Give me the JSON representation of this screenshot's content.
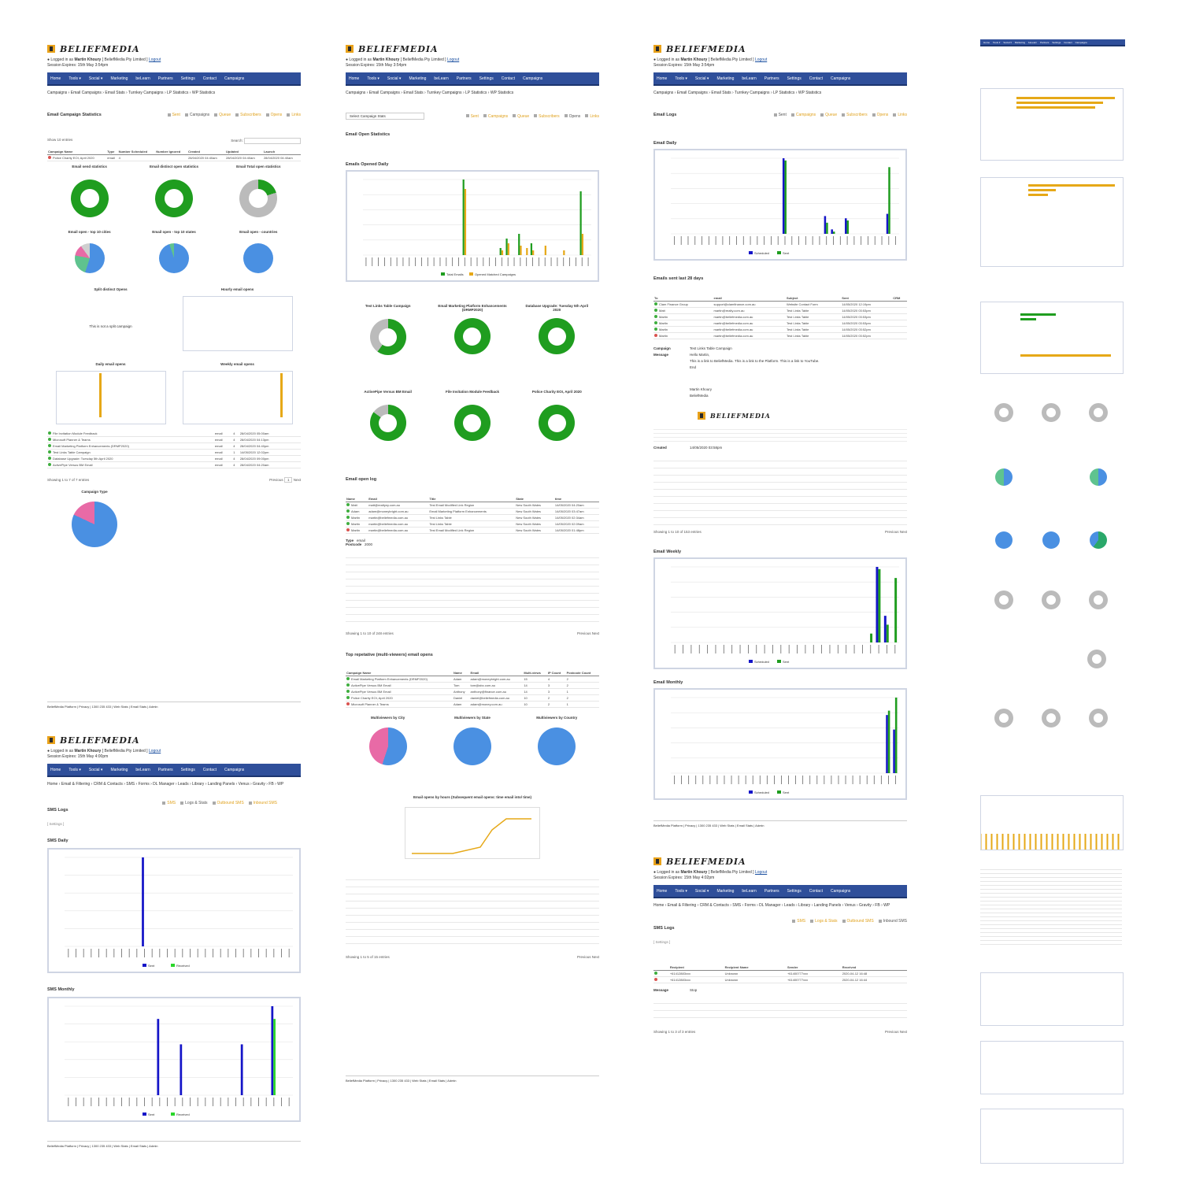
{
  "brand": {
    "logo_text": "BELIEFMEDIA"
  },
  "login": {
    "prefix": "Logged in as",
    "user": "Martin Khoury",
    "org": "[ BeliefMedia Pty Limited ]",
    "logout": "Logout",
    "session_a": "Session Expires: 15th May 3:54pm",
    "session_b": "Session Expires: 15th May 4:00pm",
    "session_c": "Session Expires: 15th May 4:02pm"
  },
  "nav": {
    "items": [
      "Home",
      "Tools ▾",
      "Social ▾",
      "Marketing",
      "beLearn",
      "Partners",
      "Settings",
      "Contact",
      "Campaigns"
    ]
  },
  "crumbs": {
    "email_stats": "Campaigns  ›  Email Campaigns  ›  Email Stats  ›  Turnkey Campaigns  ›  LP Statistics  ›  WP Statistics",
    "sms": "Home  ›  Email & Filtering  ›  CRM & Contacts  ›  SMS  ›  Forms  ›  DL Manager  ›  Leads  ›  Library  ›  Landing Panels  ›  Venus  ›  Gravity  ›  FB  ›  WP"
  },
  "tabs": {
    "labels": [
      "Sent",
      "Campaigns",
      "Queue",
      "Subscribers",
      "Opens",
      "Links"
    ]
  },
  "sms_tabs": {
    "labels": [
      "SMS",
      "Logs & Stats",
      "Outbound SMS",
      "Inbound SMS"
    ]
  },
  "panel1": {
    "title": "Email Campaign Statistics",
    "show": "Show  10  entries",
    "search": "Search:",
    "columns": [
      "Campaign Name",
      "Type",
      "Number Scheduled",
      "Number Ignored",
      "Created",
      "Updated",
      "Launch"
    ],
    "top_row": [
      "Police Charity EOI, April 2020",
      "email",
      "4",
      "",
      "28/04/2020 04:40am",
      "28/04/2020 04:40am",
      "28/04/2020 04:40am"
    ],
    "donut_titles": [
      "Email send statistics",
      "Email distinct open statistics",
      "Email Total open statistics"
    ],
    "pie_titles": [
      "Email open - top 10 cities",
      "Email open - top 10 states",
      "Email open - countries"
    ],
    "split_title": "Split distinct Opens",
    "hourly_title": "Hourly email opens",
    "split_note": "This is not a split campaign",
    "daily_title": "Daily email opens",
    "weekly_title": "Weekly email opens",
    "rows": [
      [
        "File Invitation Module Feedback",
        "email",
        "4",
        "28/04/2020 05:00am"
      ],
      [
        "Microsoft Planner & Teams",
        "email",
        "4",
        "28/04/2020 04:13pm"
      ],
      [
        "Email Marketing Platform Enhancements (DRMP2020)",
        "email",
        "4",
        "28/04/2020 04:40pm"
      ],
      [
        "Test Links Table Campaign",
        "email",
        "1",
        "14/05/2020 12:02pm"
      ],
      [
        "Database Upgrade: Tuesday 5th April 2020",
        "email",
        "4",
        "28/04/2020 09:00pm"
      ],
      [
        "ActivePipe Versus BM Email",
        "email",
        "4",
        "28/04/2020 04:20am"
      ]
    ],
    "showing": "Showing 1 to 7 of 7 entries",
    "prev": "Previous",
    "next": "Next",
    "page": "1",
    "type_title": "Campaign Type"
  },
  "panel2": {
    "select": "Select Campaign Stats",
    "open_title": "Email Open Statistics",
    "daily_title": "Emails Opened Daily",
    "donuts": [
      "Test Links Table Campaign",
      "Email Marketing Platform Enhancements (DRMP2020)",
      "Database Upgrade: Tuesday 5th April 2020",
      "ActivePipe Versus BM Email",
      "File Invitation Module Feedback",
      "Police Charity EOI, April 2020"
    ],
    "log_title": "Email open log",
    "log_columns": [
      "Name",
      "Email",
      "Title",
      "State",
      "time"
    ],
    "log_rows": [
      [
        "Matt",
        "matt@realtyny.com.au",
        "Test Email Modified Link Region",
        "New South Wales",
        "14/05/2020 04:20am"
      ],
      [
        "Adam",
        "adam@moneybright.com.au",
        "Email Marketing Platform Enhancements",
        "New South Wales",
        "14/05/2020 03:47am"
      ],
      [
        "Martin",
        "martin@beliefmedia.com.au",
        "Test Links Table",
        "New South Wales",
        "14/05/2020 02:34am"
      ],
      [
        "Martin",
        "martin@beliefmedia.com.au",
        "Test Links Table",
        "New South Wales",
        "14/05/2020 02:09am"
      ],
      [
        "Martin",
        "martin@beliefmedia.com.au",
        "Test Email Modified Link Region",
        "New South Wales",
        "14/05/2020 01:48pm"
      ]
    ],
    "type_label": "Type",
    "type_value": "email",
    "postcode_label": "Postcode",
    "postcode_value": "2000",
    "log_showing": "Showing 1 to 10 of 248 entries",
    "repeat_title": "Top repetative (multi-viewers) email opens",
    "repeat_columns": [
      "Campaign Name",
      "Name",
      "Email",
      "Multi-views",
      "IP Count",
      "Postcode Count"
    ],
    "repeat_rows": [
      [
        "Email Marketing Platform Enhancements (DRMP2020)",
        "Adam",
        "adam@moneybright.com.au",
        "15",
        "4",
        "2"
      ],
      [
        "ActivePipe Versus BM Email",
        "Tom",
        "tom@abc.com.au",
        "14",
        "3",
        "2"
      ],
      [
        "ActivePipe Versus BM Email",
        "Anthony",
        "anthony@finance.com.au",
        "14",
        "3",
        "1"
      ],
      [
        "Police Charity EOI, April 2020",
        "Daniel",
        "daniel@beliefmedia.com.au",
        "10",
        "2",
        "2"
      ],
      [
        "Microsoft Planner & Teams",
        "Adam",
        "adam@money.com.au",
        "10",
        "2",
        "1"
      ]
    ],
    "city_title": "Multiviewers by City",
    "state_title": "Multiviewers by State",
    "country_title": "Multiviewers by Country",
    "hour_title": "Email opens by hours (Subsequent email opens: time email into/ time)",
    "repeat_showing": "Showing 1 to 5 of 15 entries"
  },
  "panel3": {
    "logs_title": "Email Logs",
    "daily_title": "Email Daily",
    "sent_title": "Emails sent last 28 days",
    "sent_columns": [
      "To",
      "email",
      "Subject",
      "Sent",
      "CRM"
    ],
    "sent_rows": [
      [
        "Clam Finance Group",
        "support@clamfinance.com.au",
        "Website Contact Form",
        "14/05/2020 12:19pm"
      ],
      [
        "Matt",
        "martin@realty.com.au",
        "Test Links Table",
        "14/05/2020 03:53pm"
      ],
      [
        "Martin",
        "martin@beliefmedia.com.au",
        "Test Links Table",
        "14/05/2020 03:53pm"
      ],
      [
        "Martin",
        "martin@beliefmedia.com.au",
        "Test Links Table",
        "14/05/2020 03:53pm"
      ],
      [
        "Martin",
        "martin@beliefmedia.com.au",
        "Test Links Table",
        "14/05/2020 03:52pm"
      ],
      [
        "Martin",
        "martin@beliefmedia.com.au",
        "Test Links Table",
        "14/05/2020 03:52pm"
      ]
    ],
    "campaign_label": "Campaign",
    "campaign_value": "Test Links Table Campaign",
    "message_label": "Message",
    "message_greeting": "Hello Martin,",
    "message_body": "This is a link to BeliefMedia. This is a link to the Platform. This is a link to YouTube.",
    "message_end": "End",
    "sig_name": "Martin Khoury",
    "sig_org": "BeliefMedia",
    "created_label": "Created",
    "created_value": "14/05/2020 03:58pm",
    "showing": "Showing 1 to 10 of 153 entries",
    "weekly_title": "Email Weekly",
    "monthly_title": "Email Monthly",
    "sms_title": "SMS Logs",
    "sms_settings": "[ Settings ]",
    "sms_columns": [
      "Recipient",
      "Recipient Name",
      "Sender",
      "Received"
    ],
    "sms_rows": [
      [
        "+61412883xxx",
        "Unknown",
        "+61400777xxx",
        "2020-04-12 16:48"
      ],
      [
        "+61412883xxx",
        "Unknown",
        "+61400777xxx",
        "2020-04-12 16:44"
      ]
    ],
    "sms_message_label": "Message",
    "sms_message_value": "Stop",
    "sms_showing": "Showing 1 to 3 of 3 entries"
  },
  "panel4": {
    "sms_title": "SMS Logs",
    "sms_settings": "[ Settings ]",
    "daily_title": "SMS Daily",
    "monthly_title": "SMS Monthly"
  },
  "footer": {
    "text": "BeliefMedia Platform | Privacy | 1300 235 433 | Web Stats | Email Stats | Admin"
  },
  "colors": {
    "nav": "#2f4f9a",
    "green": "#1f9d1f",
    "orange": "#e6a817",
    "blue": "#1515c8",
    "pie_blue": "#4a90e2",
    "pink": "#e86aa6"
  },
  "chart_data": [
    {
      "type": "bar",
      "title": "Emails Opened Daily",
      "series": [
        {
          "name": "Total Emails",
          "values": [
            0,
            0,
            0,
            0,
            0,
            0,
            0,
            0,
            0,
            0,
            0,
            0,
            0,
            0,
            0,
            0,
            32,
            0,
            0,
            0,
            0,
            0,
            3,
            7,
            0,
            9,
            0,
            5,
            0,
            0,
            0,
            0,
            0,
            0,
            0,
            27,
            0
          ]
        },
        {
          "name": "Opened Matched Campaigns",
          "values": [
            0,
            0,
            0,
            0,
            0,
            0,
            0,
            0,
            0,
            0,
            0,
            0,
            0,
            0,
            0,
            0,
            28,
            0,
            0,
            0,
            0,
            0,
            2,
            5,
            0,
            4,
            3,
            2,
            0,
            4,
            0,
            0,
            2,
            0,
            0,
            9,
            0
          ]
        }
      ]
    },
    {
      "type": "bar",
      "title": "Email Daily",
      "series": [
        {
          "name": "Scheduled",
          "values": [
            0,
            0,
            0,
            0,
            0,
            0,
            0,
            0,
            0,
            0,
            0,
            0,
            0,
            0,
            0,
            0,
            34,
            0,
            0,
            0,
            0,
            0,
            8,
            2,
            0,
            7,
            0,
            0,
            0,
            0,
            0,
            9,
            0
          ]
        },
        {
          "name": "Sent",
          "values": [
            0,
            0,
            0,
            0,
            0,
            0,
            0,
            0,
            0,
            0,
            0,
            0,
            0,
            0,
            0,
            0,
            33,
            0,
            0,
            0,
            0,
            0,
            5,
            1,
            0,
            6,
            0,
            0,
            0,
            0,
            0,
            30,
            0
          ]
        }
      ]
    },
    {
      "type": "bar",
      "title": "Email Weekly",
      "series": [
        {
          "name": "Scheduled",
          "values": [
            0,
            0,
            0,
            0,
            0,
            0,
            0,
            0,
            0,
            0,
            0,
            0,
            0,
            0,
            0,
            0,
            0,
            0,
            0,
            0,
            0,
            0,
            0,
            0,
            0,
            34,
            12,
            0
          ]
        },
        {
          "name": "Sent",
          "values": [
            0,
            0,
            0,
            0,
            0,
            0,
            0,
            0,
            0,
            0,
            0,
            0,
            0,
            0,
            0,
            0,
            0,
            0,
            0,
            0,
            0,
            0,
            0,
            0,
            4,
            33,
            8,
            29
          ]
        }
      ]
    },
    {
      "type": "bar",
      "title": "Email Monthly",
      "series": [
        {
          "name": "Scheduled",
          "values": [
            0,
            0,
            0,
            0,
            0,
            0,
            0,
            0,
            0,
            0,
            0,
            0,
            0,
            0,
            0,
            0,
            0,
            0,
            0,
            0,
            0,
            0,
            0,
            0,
            0,
            0,
            0,
            0,
            0,
            0,
            40,
            30
          ]
        },
        {
          "name": "Sent",
          "values": [
            0,
            0,
            0,
            0,
            0,
            0,
            0,
            0,
            0,
            0,
            0,
            0,
            0,
            0,
            0,
            0,
            0,
            0,
            0,
            0,
            0,
            0,
            0,
            0,
            0,
            0,
            0,
            0,
            0,
            0,
            43,
            52
          ]
        }
      ]
    },
    {
      "type": "bar",
      "title": "SMS Daily",
      "series": [
        {
          "name": "Sent",
          "values": [
            0,
            0,
            0,
            0,
            0,
            0,
            0,
            0,
            0,
            0,
            1,
            0,
            0,
            0,
            0,
            0,
            0,
            0,
            0,
            0,
            0,
            0,
            0,
            0,
            0,
            0,
            0,
            0,
            0,
            0
          ]
        },
        {
          "name": "Received",
          "values": [
            0,
            0,
            0,
            0,
            0,
            0,
            0,
            0,
            0,
            0,
            0,
            0,
            0,
            0,
            0,
            0,
            0,
            0,
            0,
            0,
            0,
            0,
            0,
            0,
            0,
            0,
            0,
            0,
            0,
            0
          ]
        }
      ]
    },
    {
      "type": "bar",
      "title": "SMS Monthly",
      "series": [
        {
          "name": "Sent",
          "values": [
            0,
            0,
            0,
            0,
            0,
            0,
            0,
            0,
            0,
            0,
            0,
            0,
            6,
            0,
            0,
            4,
            0,
            0,
            0,
            0,
            0,
            0,
            0,
            4,
            0,
            0,
            0,
            7,
            0,
            0
          ]
        },
        {
          "name": "Received",
          "values": [
            0,
            0,
            0,
            0,
            0,
            0,
            0,
            0,
            0,
            0,
            0,
            0,
            0,
            0,
            0,
            0,
            0,
            0,
            0,
            0,
            0,
            0,
            0,
            0,
            0,
            0,
            0,
            6,
            0,
            0
          ]
        }
      ]
    }
  ]
}
